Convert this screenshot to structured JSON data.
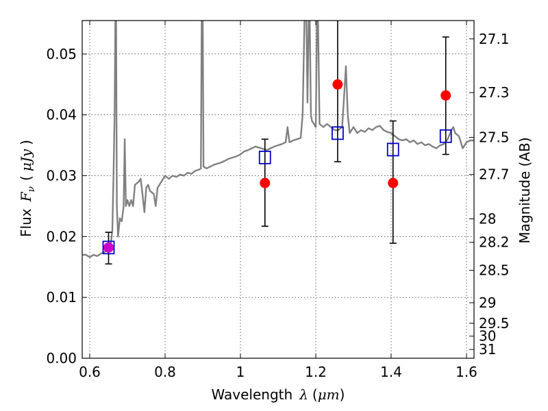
{
  "chart_data": {
    "type": "scatter",
    "title": "",
    "xlabel": "Wavelength",
    "xlabel_symbol": "λ",
    "xlabel_unit_open": "(",
    "xlabel_unit": "μm",
    "xlabel_unit_close": ")",
    "ylabel": "Flux",
    "ylabel_symbol": "F",
    "ylabel_subscript": "ν",
    "ylabel_unit_open": "(",
    "ylabel_unit": "μJy",
    "ylabel_unit_close": ")",
    "y2label": "Magnitude (AB)",
    "xlim": [
      0.58,
      1.62
    ],
    "ylim": [
      0.0,
      0.0555
    ],
    "grid": true,
    "x_ticks": [
      {
        "value": 0.6,
        "label": "0.6"
      },
      {
        "value": 0.8,
        "label": "0.8"
      },
      {
        "value": 1.0,
        "label": "1"
      },
      {
        "value": 1.2,
        "label": "1.2"
      },
      {
        "value": 1.4,
        "label": "1.4"
      },
      {
        "value": 1.6,
        "label": "1.6"
      }
    ],
    "y_ticks": [
      {
        "value": 0.0,
        "label": "0.00"
      },
      {
        "value": 0.01,
        "label": "0.01"
      },
      {
        "value": 0.02,
        "label": "0.02"
      },
      {
        "value": 0.03,
        "label": "0.03"
      },
      {
        "value": 0.04,
        "label": "0.04"
      },
      {
        "value": 0.05,
        "label": "0.05"
      }
    ],
    "magnitude_ticks": [
      {
        "mag": 27.1,
        "label": "27.1"
      },
      {
        "mag": 27.3,
        "label": "27.3"
      },
      {
        "mag": 27.5,
        "label": "27.5"
      },
      {
        "mag": 27.7,
        "label": "27.7"
      },
      {
        "mag": 28.0,
        "label": "28"
      },
      {
        "mag": 28.2,
        "label": "28.2"
      },
      {
        "mag": 28.5,
        "label": "28.5"
      },
      {
        "mag": 29.0,
        "label": "29"
      },
      {
        "mag": 29.5,
        "label": "29.5"
      },
      {
        "mag": 30.0,
        "label": "30"
      },
      {
        "mag": 31.0,
        "label": "31"
      }
    ],
    "model_spectrum": {
      "color": "#808080",
      "points": [
        [
          0.58,
          0.017
        ],
        [
          0.59,
          0.017
        ],
        [
          0.6,
          0.0166
        ],
        [
          0.61,
          0.017
        ],
        [
          0.62,
          0.0168
        ],
        [
          0.63,
          0.0172
        ],
        [
          0.64,
          0.0175
        ],
        [
          0.645,
          0.0178
        ],
        [
          0.65,
          0.018
        ],
        [
          0.655,
          0.0185
        ],
        [
          0.66,
          0.021
        ],
        [
          0.663,
          0.03
        ],
        [
          0.666,
          0.04
        ],
        [
          0.668,
          0.0555
        ],
        [
          0.67,
          0.0555
        ],
        [
          0.672,
          0.025
        ],
        [
          0.675,
          0.02
        ],
        [
          0.68,
          0.023
        ],
        [
          0.685,
          0.0225
        ],
        [
          0.69,
          0.025
        ],
        [
          0.693,
          0.036
        ],
        [
          0.696,
          0.025
        ],
        [
          0.7,
          0.026
        ],
        [
          0.705,
          0.025
        ],
        [
          0.71,
          0.026
        ],
        [
          0.715,
          0.025
        ],
        [
          0.72,
          0.0285
        ],
        [
          0.73,
          0.029
        ],
        [
          0.735,
          0.0295
        ],
        [
          0.74,
          0.027
        ],
        [
          0.745,
          0.024
        ],
        [
          0.75,
          0.028
        ],
        [
          0.755,
          0.0285
        ],
        [
          0.76,
          0.0275
        ],
        [
          0.77,
          0.027
        ],
        [
          0.775,
          0.025
        ],
        [
          0.78,
          0.028
        ],
        [
          0.79,
          0.029
        ],
        [
          0.8,
          0.03
        ],
        [
          0.81,
          0.0295
        ],
        [
          0.82,
          0.03
        ],
        [
          0.83,
          0.0298
        ],
        [
          0.84,
          0.0302
        ],
        [
          0.85,
          0.03
        ],
        [
          0.86,
          0.0305
        ],
        [
          0.87,
          0.0303
        ],
        [
          0.88,
          0.0308
        ],
        [
          0.89,
          0.031
        ],
        [
          0.895,
          0.0312
        ],
        [
          0.897,
          0.0555
        ],
        [
          0.9,
          0.0555
        ],
        [
          0.902,
          0.0315
        ],
        [
          0.91,
          0.0312
        ],
        [
          0.92,
          0.0315
        ],
        [
          0.93,
          0.0318
        ],
        [
          0.94,
          0.032
        ],
        [
          0.95,
          0.0322
        ],
        [
          0.96,
          0.0325
        ],
        [
          0.97,
          0.0328
        ],
        [
          0.98,
          0.033
        ],
        [
          0.99,
          0.0332
        ],
        [
          1.0,
          0.0335
        ],
        [
          1.01,
          0.034
        ],
        [
          1.02,
          0.0342
        ],
        [
          1.03,
          0.0345
        ],
        [
          1.04,
          0.0348
        ],
        [
          1.05,
          0.0346
        ],
        [
          1.06,
          0.0344
        ],
        [
          1.07,
          0.0342
        ],
        [
          1.08,
          0.0345
        ],
        [
          1.09,
          0.0348
        ],
        [
          1.1,
          0.035
        ],
        [
          1.11,
          0.0352
        ],
        [
          1.12,
          0.0355
        ],
        [
          1.125,
          0.038
        ],
        [
          1.13,
          0.0355
        ],
        [
          1.14,
          0.0358
        ],
        [
          1.15,
          0.036
        ],
        [
          1.16,
          0.0362
        ],
        [
          1.165,
          0.04
        ],
        [
          1.17,
          0.0555
        ],
        [
          1.175,
          0.0555
        ],
        [
          1.178,
          0.042
        ],
        [
          1.181,
          0.0555
        ],
        [
          1.184,
          0.0555
        ],
        [
          1.187,
          0.04
        ],
        [
          1.19,
          0.039
        ],
        [
          1.195,
          0.0385
        ],
        [
          1.2,
          0.038
        ],
        [
          1.203,
          0.0555
        ],
        [
          1.206,
          0.0555
        ],
        [
          1.21,
          0.0385
        ],
        [
          1.22,
          0.038
        ],
        [
          1.23,
          0.0385
        ],
        [
          1.24,
          0.038
        ],
        [
          1.25,
          0.0375
        ],
        [
          1.26,
          0.0375
        ],
        [
          1.27,
          0.038
        ],
        [
          1.275,
          0.043
        ],
        [
          1.28,
          0.048
        ],
        [
          1.285,
          0.04
        ],
        [
          1.29,
          0.037
        ],
        [
          1.3,
          0.038
        ],
        [
          1.31,
          0.037
        ],
        [
          1.32,
          0.0375
        ],
        [
          1.33,
          0.0372
        ],
        [
          1.34,
          0.0378
        ],
        [
          1.35,
          0.0375
        ],
        [
          1.36,
          0.038
        ],
        [
          1.37,
          0.0382
        ],
        [
          1.38,
          0.0375
        ],
        [
          1.39,
          0.0372
        ],
        [
          1.4,
          0.037
        ],
        [
          1.41,
          0.0365
        ],
        [
          1.42,
          0.036
        ],
        [
          1.43,
          0.0358
        ],
        [
          1.44,
          0.036
        ],
        [
          1.45,
          0.0355
        ],
        [
          1.46,
          0.0358
        ],
        [
          1.47,
          0.0352
        ],
        [
          1.48,
          0.0355
        ],
        [
          1.49,
          0.035
        ],
        [
          1.5,
          0.0352
        ],
        [
          1.51,
          0.0348
        ],
        [
          1.52,
          0.0345
        ],
        [
          1.53,
          0.035
        ],
        [
          1.54,
          0.0352
        ],
        [
          1.55,
          0.036
        ],
        [
          1.56,
          0.0375
        ],
        [
          1.565,
          0.038
        ],
        [
          1.57,
          0.037
        ],
        [
          1.58,
          0.0365
        ],
        [
          1.59,
          0.0345
        ],
        [
          1.6,
          0.0355
        ],
        [
          1.61,
          0.0358
        ],
        [
          1.62,
          0.0358
        ]
      ]
    },
    "series": [
      {
        "marker": "circle",
        "color": "#ff0000",
        "x": [
          0.65,
          1.065,
          1.258,
          1.405,
          1.545
        ],
        "y": [
          0.0182,
          0.0288,
          0.045,
          0.0288,
          0.0432
        ],
        "yerr_low": [
          0.0155,
          0.0217,
          0.0323,
          0.0189,
          0.0335
        ],
        "yerr_high": [
          0.0207,
          0.036,
          0.0555,
          0.039,
          0.0528
        ],
        "first_point_color": "#cc00cc"
      },
      {
        "marker": "open-square",
        "color": "#0000cc",
        "x": [
          0.65,
          1.065,
          1.258,
          1.405,
          1.545
        ],
        "y": [
          0.0182,
          0.033,
          0.037,
          0.0343,
          0.0365
        ]
      }
    ]
  }
}
